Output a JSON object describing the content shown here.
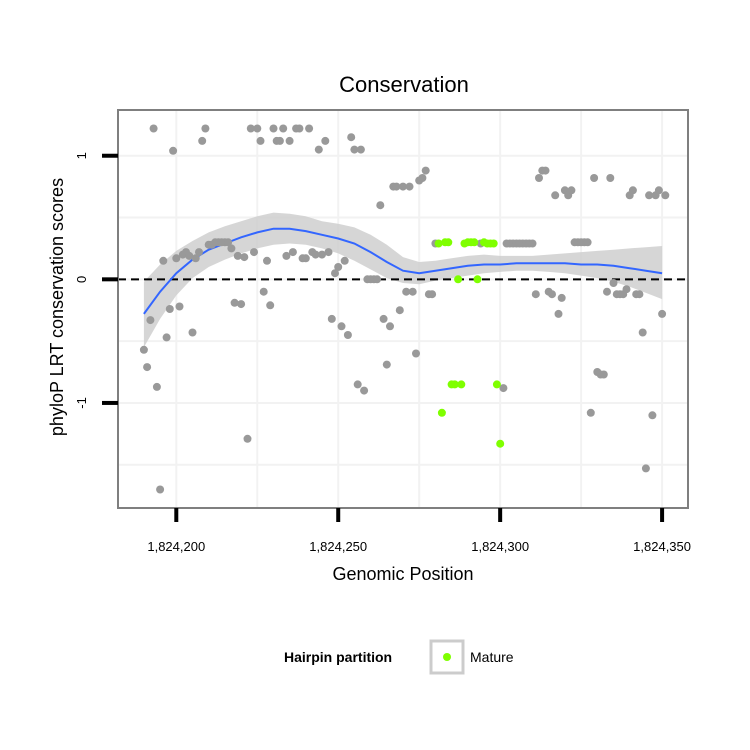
{
  "chart_data": {
    "type": "scatter",
    "title": "Conservation",
    "xlabel": "Genomic Position",
    "ylabel": "phyloP LRT conservation scores",
    "xlim": [
      1824182,
      1824358
    ],
    "ylim": [
      -1.85,
      1.37
    ],
    "x_ticks": [
      1824200,
      1824250,
      1824300,
      1824350
    ],
    "x_tick_labels": [
      "1,824,200",
      "1,824,250",
      "1,824,300",
      "1,824,350"
    ],
    "y_ticks": [
      -1,
      0,
      1
    ],
    "y_tick_labels": [
      "-1",
      "0",
      "1"
    ],
    "grid": true,
    "reference_line": {
      "y": 0,
      "style": "dashed"
    },
    "colors": {
      "other": "#999999",
      "mature": "#7fff00",
      "smooth": "#3366ff",
      "band": "#cfcfcf",
      "panel_border": "#7f7f7f",
      "grid": "#f2f2f2"
    },
    "legend": {
      "title": "Hairpin partition",
      "placement": "bottom",
      "entries": [
        {
          "label": "Mature",
          "color": "#7fff00"
        }
      ]
    },
    "series": [
      {
        "group": "other",
        "points": [
          [
            1824190,
            -0.57
          ],
          [
            1824191,
            -0.71
          ],
          [
            1824192,
            -0.33
          ],
          [
            1824193,
            1.22
          ],
          [
            1824194,
            -0.87
          ],
          [
            1824195,
            -1.7
          ],
          [
            1824196,
            0.15
          ],
          [
            1824197,
            -0.47
          ],
          [
            1824198,
            -0.24
          ],
          [
            1824199,
            1.04
          ],
          [
            1824200,
            0.17
          ],
          [
            1824201,
            -0.22
          ],
          [
            1824202,
            0.2
          ],
          [
            1824203,
            0.22
          ],
          [
            1824204,
            0.19
          ],
          [
            1824205,
            -0.43
          ],
          [
            1824206,
            0.17
          ],
          [
            1824207,
            0.22
          ],
          [
            1824208,
            1.12
          ],
          [
            1824209,
            1.22
          ],
          [
            1824210,
            0.28
          ],
          [
            1824211,
            0.28
          ],
          [
            1824212,
            0.3
          ],
          [
            1824213,
            0.3
          ],
          [
            1824214,
            0.3
          ],
          [
            1824215,
            0.3
          ],
          [
            1824216,
            0.3
          ],
          [
            1824217,
            0.25
          ],
          [
            1824218,
            -0.19
          ],
          [
            1824219,
            0.19
          ],
          [
            1824220,
            -0.2
          ],
          [
            1824221,
            0.18
          ],
          [
            1824222,
            -1.29
          ],
          [
            1824223,
            1.22
          ],
          [
            1824224,
            0.22
          ],
          [
            1824225,
            1.22
          ],
          [
            1824226,
            1.12
          ],
          [
            1824227,
            -0.1
          ],
          [
            1824228,
            0.15
          ],
          [
            1824229,
            -0.21
          ],
          [
            1824230,
            1.22
          ],
          [
            1824231,
            1.12
          ],
          [
            1824232,
            1.12
          ],
          [
            1824233,
            1.22
          ],
          [
            1824234,
            0.19
          ],
          [
            1824235,
            1.12
          ],
          [
            1824236,
            0.22
          ],
          [
            1824237,
            1.22
          ],
          [
            1824238,
            1.22
          ],
          [
            1824239,
            0.17
          ],
          [
            1824240,
            0.17
          ],
          [
            1824241,
            1.22
          ],
          [
            1824242,
            0.22
          ],
          [
            1824243,
            0.2
          ],
          [
            1824244,
            1.05
          ],
          [
            1824245,
            0.2
          ],
          [
            1824246,
            1.12
          ],
          [
            1824247,
            0.22
          ],
          [
            1824248,
            -0.32
          ],
          [
            1824249,
            0.05
          ],
          [
            1824250,
            0.1
          ],
          [
            1824251,
            -0.38
          ],
          [
            1824252,
            0.15
          ],
          [
            1824253,
            -0.45
          ],
          [
            1824254,
            1.15
          ],
          [
            1824255,
            1.05
          ],
          [
            1824256,
            -0.85
          ],
          [
            1824257,
            1.05
          ],
          [
            1824258,
            -0.9
          ],
          [
            1824259,
            0.0
          ],
          [
            1824260,
            0.0
          ],
          [
            1824261,
            0.0
          ],
          [
            1824262,
            0.0
          ],
          [
            1824263,
            0.6
          ],
          [
            1824264,
            -0.32
          ],
          [
            1824265,
            -0.69
          ],
          [
            1824266,
            -0.38
          ],
          [
            1824267,
            0.75
          ],
          [
            1824268,
            0.75
          ],
          [
            1824269,
            -0.25
          ],
          [
            1824270,
            0.75
          ],
          [
            1824271,
            -0.1
          ],
          [
            1824272,
            0.75
          ],
          [
            1824273,
            -0.1
          ],
          [
            1824274,
            -0.6
          ],
          [
            1824275,
            0.8
          ],
          [
            1824276,
            0.82
          ],
          [
            1824277,
            0.88
          ],
          [
            1824278,
            -0.12
          ],
          [
            1824279,
            -0.12
          ],
          [
            1824280,
            0.29
          ],
          [
            1824294,
            0.29
          ],
          [
            1824301,
            -0.88
          ],
          [
            1824302,
            0.29
          ],
          [
            1824303,
            0.29
          ],
          [
            1824304,
            0.29
          ],
          [
            1824305,
            0.29
          ],
          [
            1824306,
            0.29
          ],
          [
            1824307,
            0.29
          ],
          [
            1824308,
            0.29
          ],
          [
            1824309,
            0.29
          ],
          [
            1824310,
            0.29
          ],
          [
            1824311,
            -0.12
          ],
          [
            1824312,
            0.82
          ],
          [
            1824313,
            0.88
          ],
          [
            1824314,
            0.88
          ],
          [
            1824315,
            -0.1
          ],
          [
            1824316,
            -0.12
          ],
          [
            1824317,
            0.68
          ],
          [
            1824318,
            -0.28
          ],
          [
            1824319,
            -0.15
          ],
          [
            1824320,
            0.72
          ],
          [
            1824321,
            0.68
          ],
          [
            1824322,
            0.72
          ],
          [
            1824323,
            0.3
          ],
          [
            1824324,
            0.3
          ],
          [
            1824325,
            0.3
          ],
          [
            1824326,
            0.3
          ],
          [
            1824327,
            0.3
          ],
          [
            1824328,
            -1.08
          ],
          [
            1824329,
            0.82
          ],
          [
            1824330,
            -0.75
          ],
          [
            1824331,
            -0.77
          ],
          [
            1824332,
            -0.77
          ],
          [
            1824333,
            -0.1
          ],
          [
            1824334,
            0.82
          ],
          [
            1824335,
            -0.03
          ],
          [
            1824336,
            -0.12
          ],
          [
            1824337,
            -0.12
          ],
          [
            1824338,
            -0.12
          ],
          [
            1824339,
            -0.08
          ],
          [
            1824340,
            0.68
          ],
          [
            1824341,
            0.72
          ],
          [
            1824342,
            -0.12
          ],
          [
            1824343,
            -0.12
          ],
          [
            1824344,
            -0.43
          ],
          [
            1824345,
            -1.53
          ],
          [
            1824346,
            0.68
          ],
          [
            1824347,
            -1.1
          ],
          [
            1824348,
            0.68
          ],
          [
            1824349,
            0.72
          ],
          [
            1824350,
            -0.28
          ],
          [
            1824351,
            0.68
          ]
        ]
      },
      {
        "group": "mature",
        "points": [
          [
            1824281,
            0.29
          ],
          [
            1824282,
            -1.08
          ],
          [
            1824283,
            0.3
          ],
          [
            1824284,
            0.3
          ],
          [
            1824285,
            -0.85
          ],
          [
            1824286,
            -0.85
          ],
          [
            1824287,
            0.0
          ],
          [
            1824288,
            -0.85
          ],
          [
            1824289,
            0.29
          ],
          [
            1824290,
            0.3
          ],
          [
            1824291,
            0.3
          ],
          [
            1824292,
            0.3
          ],
          [
            1824293,
            0.0
          ],
          [
            1824295,
            0.3
          ],
          [
            1824296,
            0.29
          ],
          [
            1824297,
            0.29
          ],
          [
            1824298,
            0.29
          ],
          [
            1824299,
            -0.85
          ],
          [
            1824300,
            -1.33
          ]
        ]
      }
    ],
    "smooth": {
      "x": [
        1824190,
        1824195,
        1824200,
        1824205,
        1824210,
        1824215,
        1824220,
        1824225,
        1824230,
        1824235,
        1824240,
        1824245,
        1824250,
        1824255,
        1824260,
        1824265,
        1824270,
        1824275,
        1824280,
        1824285,
        1824290,
        1824295,
        1824300,
        1824305,
        1824310,
        1824315,
        1824320,
        1824325,
        1824330,
        1824335,
        1824340,
        1824345,
        1824350
      ],
      "y": [
        -0.28,
        -0.1,
        0.05,
        0.16,
        0.24,
        0.29,
        0.34,
        0.38,
        0.41,
        0.41,
        0.39,
        0.36,
        0.33,
        0.29,
        0.22,
        0.14,
        0.07,
        0.05,
        0.07,
        0.09,
        0.11,
        0.12,
        0.12,
        0.13,
        0.13,
        0.13,
        0.13,
        0.12,
        0.12,
        0.11,
        0.09,
        0.07,
        0.05
      ],
      "lower": [
        -0.55,
        -0.32,
        -0.13,
        0.01,
        0.1,
        0.16,
        0.21,
        0.25,
        0.28,
        0.29,
        0.28,
        0.25,
        0.21,
        0.15,
        0.08,
        0.01,
        -0.03,
        -0.04,
        -0.01,
        0.01,
        0.03,
        0.05,
        0.06,
        0.07,
        0.07,
        0.06,
        0.05,
        0.03,
        0.01,
        -0.02,
        -0.06,
        -0.11,
        -0.16
      ],
      "upper": [
        -0.02,
        0.12,
        0.23,
        0.31,
        0.38,
        0.43,
        0.47,
        0.51,
        0.54,
        0.53,
        0.51,
        0.47,
        0.45,
        0.42,
        0.36,
        0.28,
        0.18,
        0.14,
        0.15,
        0.17,
        0.19,
        0.2,
        0.19,
        0.19,
        0.19,
        0.2,
        0.21,
        0.22,
        0.23,
        0.24,
        0.25,
        0.26,
        0.27
      ]
    }
  }
}
